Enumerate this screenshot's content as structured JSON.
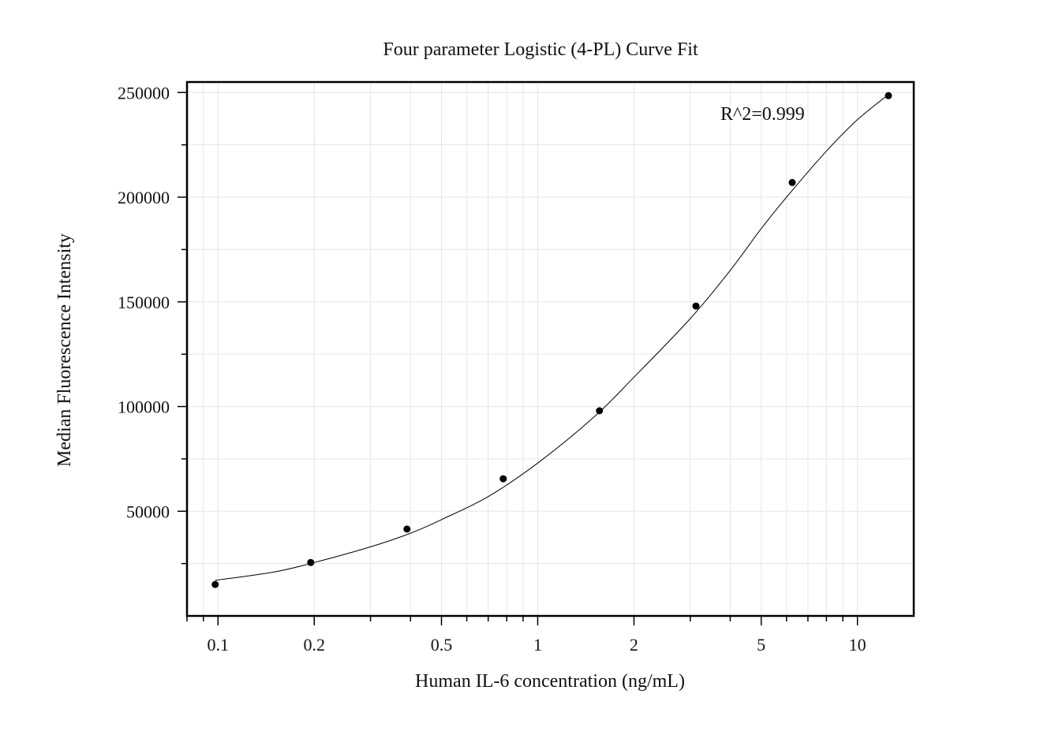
{
  "chart_data": {
    "type": "scatter",
    "title": "Four parameter Logistic (4-PL) Curve Fit",
    "xlabel": "Human IL-6 concentration (ng/mL)",
    "ylabel": "Median Fluorescence Intensity",
    "x_scale": "log",
    "xlim": [
      0.08,
      15
    ],
    "ylim": [
      0,
      255000
    ],
    "grid": true,
    "x_ticks": [
      0.1,
      0.2,
      0.5,
      1,
      2,
      5,
      10
    ],
    "x_tick_labels": [
      "0.1",
      "0.2",
      "0.5",
      "1",
      "2",
      "5",
      "10"
    ],
    "y_ticks": [
      50000,
      100000,
      150000,
      200000,
      250000
    ],
    "y_tick_labels": [
      "50000",
      "100000",
      "150000",
      "200000",
      "250000"
    ],
    "annotation": "R^2=0.999",
    "series": [
      {
        "x": [
          0.098,
          0.195,
          0.39,
          0.78,
          1.56,
          3.125,
          6.25,
          12.5
        ],
        "y": [
          15000,
          25500,
          41500,
          65500,
          98000,
          148000,
          207000,
          248500
        ]
      }
    ],
    "fit_curve": {
      "model": "4PL",
      "x": [
        0.098,
        0.15,
        0.2,
        0.3,
        0.4,
        0.5,
        0.7,
        1,
        1.5,
        2,
        3,
        4,
        5,
        6,
        8,
        10,
        12.5
      ],
      "y": [
        17000,
        21000,
        25500,
        33000,
        39500,
        46000,
        57000,
        73000,
        95000,
        114000,
        142000,
        165000,
        185000,
        200000,
        222000,
        237000,
        249000
      ]
    }
  }
}
